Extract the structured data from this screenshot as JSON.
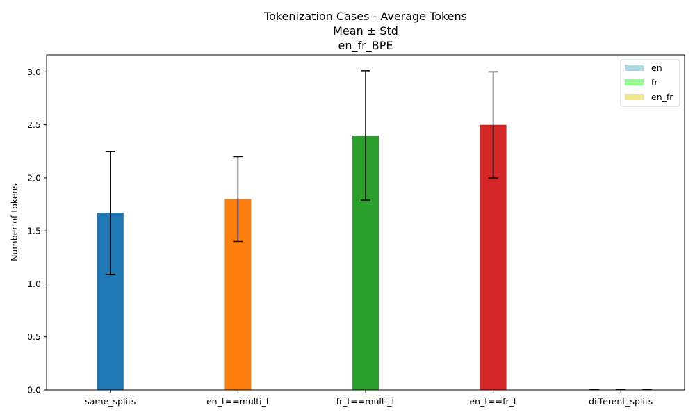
{
  "chart_data": {
    "type": "bar",
    "title_lines": [
      "Tokenization Cases - Average Tokens",
      "Mean ± Std",
      "en_fr_BPE"
    ],
    "xlabel": "",
    "ylabel": "Number of tokens",
    "ylim": [
      0,
      3.16
    ],
    "yticks": [
      0.0,
      0.5,
      1.0,
      1.5,
      2.0,
      2.5,
      3.0
    ],
    "ytick_labels": [
      "0.0",
      "0.5",
      "1.0",
      "1.5",
      "2.0",
      "2.5",
      "3.0"
    ],
    "categories": [
      "same_splits",
      "en_t==multi_t",
      "fr_t==multi_t",
      "en_t==fr_t",
      "different_splits"
    ],
    "bars": [
      {
        "category": "same_splits",
        "mean": 1.67,
        "std": 0.58,
        "color": "#1f77b4"
      },
      {
        "category": "en_t==multi_t",
        "mean": 1.8,
        "std": 0.4,
        "color": "#ff7f0e"
      },
      {
        "category": "fr_t==multi_t",
        "mean": 2.4,
        "std": 0.61,
        "color": "#2ca02c"
      },
      {
        "category": "en_t==fr_t",
        "mean": 2.5,
        "std": 0.5,
        "color": "#d62728"
      }
    ],
    "different_splits_bars": [
      {
        "series": "en",
        "mean": 0,
        "std": 0,
        "color": "#add8e6"
      },
      {
        "series": "fr",
        "mean": 0,
        "std": 0,
        "color": "#98fb98"
      },
      {
        "series": "en_fr",
        "mean": 0,
        "std": 0,
        "color": "#f0e68c"
      }
    ],
    "legend": {
      "position": "top-right",
      "entries": [
        {
          "label": "en",
          "color": "#add8e6"
        },
        {
          "label": "fr",
          "color": "#98fb98"
        },
        {
          "label": "en_fr",
          "color": "#f0e68c"
        }
      ]
    },
    "grid": false
  }
}
